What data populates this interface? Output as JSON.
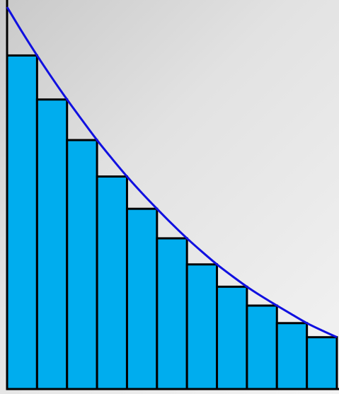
{
  "chart_data": {
    "type": "bar",
    "description_free": true,
    "x_domain": [
      0,
      11
    ],
    "y_domain": [
      0,
      1
    ],
    "bars": [
      {
        "x_start": 0,
        "x_end": 1,
        "height": 0.8733
      },
      {
        "x_start": 1,
        "x_end": 2,
        "height": 0.758
      },
      {
        "x_start": 2,
        "x_end": 3,
        "height": 0.6518
      },
      {
        "x_start": 3,
        "x_end": 4,
        "height": 0.5564
      },
      {
        "x_start": 4,
        "x_end": 5,
        "height": 0.4719
      },
      {
        "x_start": 5,
        "x_end": 6,
        "height": 0.3946
      },
      {
        "x_start": 6,
        "x_end": 7,
        "height": 0.3263
      },
      {
        "x_start": 7,
        "x_end": 8,
        "height": 0.2679
      },
      {
        "x_start": 8,
        "x_end": 9,
        "height": 0.2185
      },
      {
        "x_start": 9,
        "x_end": 10,
        "height": 0.1726
      },
      {
        "x_start": 10,
        "x_end": 11,
        "height": 0.1357
      }
    ],
    "curve": {
      "x": [
        0,
        0.5,
        1,
        1.5,
        2,
        2.5,
        3,
        3.5,
        4,
        4.5,
        5,
        5.5,
        6,
        6.5,
        7,
        7.5,
        8,
        8.5,
        9,
        9.5,
        10,
        10.5,
        11
      ],
      "y": [
        1.0,
        0.935,
        0.8733,
        0.8145,
        0.758,
        0.7044,
        0.6518,
        0.6032,
        0.5564,
        0.513,
        0.4719,
        0.4322,
        0.3946,
        0.3596,
        0.3263,
        0.2963,
        0.2679,
        0.2423,
        0.2185,
        0.1952,
        0.1726,
        0.1535,
        0.1357
      ]
    },
    "colors": {
      "bar_fill": "#00adee",
      "bar_stroke": "#000000",
      "curve": "#1010e0",
      "axis": "#000000"
    },
    "grid": false,
    "legend": "none"
  }
}
